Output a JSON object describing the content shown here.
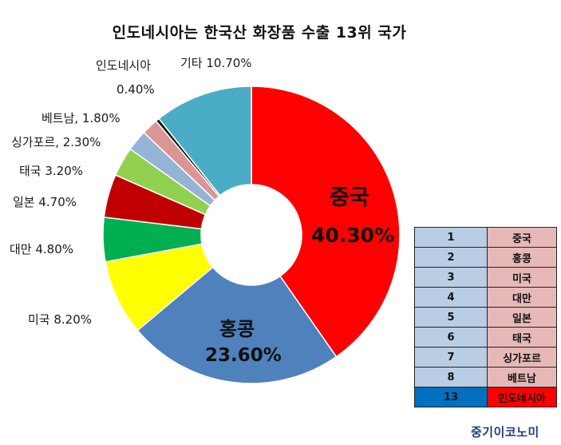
{
  "title": "인도네시아는 한국산 화장품 수출 13위 국가",
  "chart_data": {
    "type": "pie",
    "style": "donut",
    "slices": [
      {
        "name": "중국",
        "value": 40.3,
        "display": "40.30%",
        "color": "#ff0000"
      },
      {
        "name": "홍콩",
        "value": 23.6,
        "display": "23.60%",
        "color": "#4f81bd"
      },
      {
        "name": "미국",
        "value": 8.2,
        "display": "미국 8.20%",
        "color": "#ffff00"
      },
      {
        "name": "대만",
        "value": 4.8,
        "display": "대만 4.80%",
        "color": "#00b050"
      },
      {
        "name": "일본",
        "value": 4.7,
        "display": "일본 4.70%",
        "color": "#c00000"
      },
      {
        "name": "태국",
        "value": 3.2,
        "display": "태국 3.20%",
        "color": "#92d050"
      },
      {
        "name": "싱가포르",
        "value": 2.3,
        "display": "싱가포르, 2.30%",
        "color": "#95b3d7"
      },
      {
        "name": "베트남",
        "value": 1.8,
        "display": "베트남, 1.80%",
        "color": "#da9694"
      },
      {
        "name": "인도네시아",
        "value": 0.4,
        "display": "0.40%",
        "color": "#1a1a1a"
      },
      {
        "name": "기타",
        "value": 10.7,
        "display": "기타 10.70%",
        "color": "#4bacc6"
      }
    ],
    "indonesia_label_name": "인도네시아"
  },
  "ranking": [
    {
      "rank": "1",
      "country": "중국"
    },
    {
      "rank": "2",
      "country": "홍콩"
    },
    {
      "rank": "3",
      "country": "미국"
    },
    {
      "rank": "4",
      "country": "대만"
    },
    {
      "rank": "5",
      "country": "일본"
    },
    {
      "rank": "6",
      "country": "태국"
    },
    {
      "rank": "7",
      "country": "싱가포르"
    },
    {
      "rank": "8",
      "country": "베트남"
    },
    {
      "rank": "13",
      "country": "인도네시아",
      "highlight": true
    }
  ],
  "brand": "중기이코노미"
}
